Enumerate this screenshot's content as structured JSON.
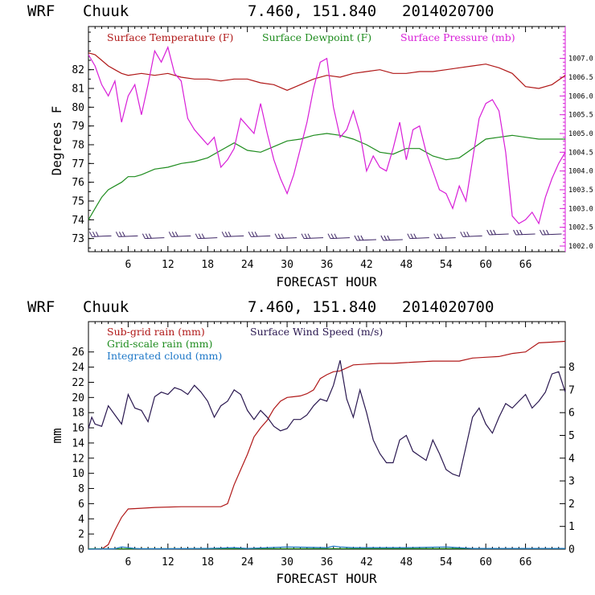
{
  "chart_data": [
    {
      "type": "line",
      "header": {
        "model": "WRF",
        "location": "Chuuk",
        "coords": "7.460, 151.840",
        "init": "2014020700"
      },
      "xlabel": "FORECAST HOUR",
      "ylabel": "Degrees F",
      "xlim": [
        0,
        72
      ],
      "ylim": [
        72.3,
        84.3
      ],
      "y2lim": [
        1001.85,
        1007.85
      ],
      "x_ticks": [
        "6",
        "12",
        "18",
        "24",
        "30",
        "36",
        "42",
        "48",
        "54",
        "60",
        "66"
      ],
      "y_ticks": [
        "73",
        "74",
        "75",
        "76",
        "77",
        "78",
        "79",
        "80",
        "81",
        "82"
      ],
      "y2_ticks": [
        "1002.0",
        "1002.5",
        "1003.0",
        "1003.5",
        "1004.0",
        "1004.5",
        "1005.0",
        "1005.5",
        "1006.0",
        "1006.5",
        "1007.0"
      ],
      "series": [
        {
          "name": "Surface Temperature (F)",
          "color": "#b01818",
          "axis": "left",
          "x": [
            0,
            1,
            2,
            3,
            4,
            5,
            6,
            8,
            10,
            12,
            14,
            16,
            18,
            20,
            22,
            24,
            26,
            28,
            30,
            32,
            34,
            36,
            38,
            40,
            42,
            44,
            46,
            48,
            50,
            52,
            54,
            56,
            58,
            60,
            62,
            64,
            66,
            68,
            70,
            72
          ],
          "y": [
            82.9,
            82.8,
            82.5,
            82.2,
            82.0,
            81.8,
            81.7,
            81.8,
            81.7,
            81.8,
            81.6,
            81.5,
            81.5,
            81.4,
            81.5,
            81.5,
            81.3,
            81.2,
            80.9,
            81.2,
            81.5,
            81.7,
            81.6,
            81.8,
            81.9,
            82.0,
            81.8,
            81.8,
            81.9,
            81.9,
            82.0,
            82.1,
            82.2,
            82.3,
            82.1,
            81.8,
            81.1,
            81.0,
            81.2,
            81.7
          ]
        },
        {
          "name": "Surface Dewpoint (F)",
          "color": "#1e8c1e",
          "axis": "left",
          "x": [
            0,
            1,
            2,
            3,
            4,
            5,
            6,
            7,
            8,
            10,
            12,
            14,
            16,
            18,
            20,
            22,
            24,
            26,
            28,
            30,
            32,
            34,
            36,
            38,
            40,
            42,
            44,
            46,
            48,
            50,
            52,
            54,
            56,
            58,
            60,
            62,
            64,
            66,
            68,
            70,
            72
          ],
          "y": [
            74.0,
            74.6,
            75.2,
            75.6,
            75.8,
            76.0,
            76.3,
            76.3,
            76.4,
            76.7,
            76.8,
            77.0,
            77.1,
            77.3,
            77.7,
            78.1,
            77.7,
            77.6,
            77.9,
            78.2,
            78.3,
            78.5,
            78.6,
            78.5,
            78.3,
            78.0,
            77.6,
            77.5,
            77.8,
            77.8,
            77.4,
            77.2,
            77.3,
            77.8,
            78.3,
            78.4,
            78.5,
            78.4,
            78.3,
            78.3,
            78.3
          ]
        },
        {
          "name": "Surface Pressure (mb)",
          "color": "#d81ed8",
          "axis": "right",
          "x": [
            0,
            1,
            2,
            3,
            4,
            5,
            6,
            7,
            8,
            9,
            10,
            11,
            12,
            13,
            14,
            15,
            16,
            17,
            18,
            19,
            20,
            21,
            22,
            23,
            24,
            25,
            26,
            27,
            28,
            29,
            30,
            31,
            32,
            33,
            34,
            35,
            36,
            37,
            38,
            39,
            40,
            41,
            42,
            43,
            44,
            45,
            46,
            47,
            48,
            49,
            50,
            51,
            52,
            53,
            54,
            55,
            56,
            57,
            58,
            59,
            60,
            61,
            62,
            63,
            64,
            65,
            66,
            67,
            68,
            69,
            70,
            71,
            72
          ],
          "y": [
            1007.1,
            1006.8,
            1006.3,
            1006.0,
            1006.4,
            1005.3,
            1006.0,
            1006.3,
            1005.5,
            1006.3,
            1007.2,
            1006.9,
            1007.3,
            1006.6,
            1006.4,
            1005.4,
            1005.1,
            1004.9,
            1004.7,
            1004.9,
            1004.1,
            1004.3,
            1004.6,
            1005.4,
            1005.2,
            1005.0,
            1005.8,
            1005.0,
            1004.3,
            1003.8,
            1003.4,
            1003.9,
            1004.6,
            1005.3,
            1006.2,
            1006.9,
            1007.0,
            1005.7,
            1004.9,
            1005.1,
            1005.6,
            1005.0,
            1004.0,
            1004.4,
            1004.1,
            1004.0,
            1004.6,
            1005.3,
            1004.3,
            1005.1,
            1005.2,
            1004.5,
            1004.0,
            1003.5,
            1003.4,
            1003.0,
            1003.6,
            1003.2,
            1004.3,
            1005.4,
            1005.8,
            1005.9,
            1005.6,
            1004.5,
            1002.8,
            1002.6,
            1002.7,
            1002.9,
            1002.6,
            1003.3,
            1003.8,
            1004.2,
            1004.5
          ]
        },
        {
          "name": "Wind barbs",
          "color": "#3c2464",
          "axis": "left",
          "x": [
            2,
            6,
            10,
            14,
            18,
            22,
            26,
            30,
            34,
            38,
            42,
            46,
            50,
            54,
            58,
            62,
            66,
            70
          ],
          "y": [
            73.1,
            73.1,
            73.0,
            73.1,
            73.0,
            73.1,
            73.1,
            73.0,
            73.0,
            73.0,
            72.9,
            72.9,
            73.0,
            73.0,
            73.1,
            73.2,
            73.2,
            73.2
          ]
        }
      ],
      "legend": [
        "Surface Temperature (F)",
        "Surface Dewpoint (F)",
        "Surface Pressure (mb)"
      ]
    },
    {
      "type": "line",
      "header": {
        "model": "WRF",
        "location": "Chuuk",
        "coords": "7.460, 151.840",
        "init": "2014020700"
      },
      "xlabel": "FORECAST HOUR",
      "ylabel": "mm",
      "xlim": [
        0,
        72
      ],
      "ylim": [
        0,
        30
      ],
      "y2lim": [
        0,
        10
      ],
      "x_ticks": [
        "6",
        "12",
        "18",
        "24",
        "30",
        "36",
        "42",
        "48",
        "54",
        "60",
        "66"
      ],
      "y_ticks": [
        "0",
        "2",
        "4",
        "6",
        "8",
        "10",
        "12",
        "14",
        "16",
        "18",
        "20",
        "22",
        "24",
        "26"
      ],
      "y2_ticks": [
        "0",
        "1",
        "2",
        "3",
        "4",
        "5",
        "6",
        "7",
        "8"
      ],
      "series": [
        {
          "name": "Sub-grid rain (mm)",
          "color": "#b01818",
          "axis": "left",
          "x": [
            0,
            2,
            3,
            4,
            5,
            6,
            8,
            10,
            14,
            18,
            20,
            21,
            22,
            23,
            24,
            25,
            26,
            27,
            28,
            29,
            30,
            31,
            32,
            33,
            34,
            35,
            36,
            37,
            38,
            40,
            42,
            44,
            46,
            48,
            52,
            56,
            58,
            60,
            62,
            64,
            66,
            68,
            70,
            72
          ],
          "y": [
            0,
            0,
            0.6,
            2.5,
            4.2,
            5.3,
            5.4,
            5.5,
            5.6,
            5.6,
            5.6,
            6.0,
            8.5,
            10.5,
            12.5,
            14.8,
            16.0,
            17.0,
            18.5,
            19.5,
            20.0,
            20.1,
            20.2,
            20.5,
            21.0,
            22.5,
            23.0,
            23.4,
            23.5,
            24.3,
            24.4,
            24.5,
            24.5,
            24.6,
            24.8,
            24.8,
            25.2,
            25.3,
            25.4,
            25.8,
            26.0,
            27.2,
            27.3,
            27.4
          ]
        },
        {
          "name": "Grid-scale rain (mm)",
          "color": "#1e8c1e",
          "axis": "left",
          "x": [
            0,
            72
          ],
          "y": [
            0.05,
            0.1
          ]
        },
        {
          "name": "Integrated cloud (mm)",
          "color": "#1e78c8",
          "axis": "left",
          "x": [
            0,
            4,
            5,
            6,
            7,
            8,
            12,
            18,
            22,
            24,
            30,
            36,
            37,
            38,
            40,
            44,
            48,
            54,
            58,
            64,
            70,
            72
          ],
          "y": [
            0,
            0.05,
            0.3,
            0.2,
            0.1,
            0.05,
            0.05,
            0.1,
            0.2,
            0.1,
            0.3,
            0.2,
            0.4,
            0.3,
            0.2,
            0.2,
            0.2,
            0.3,
            0.1,
            0.1,
            0.1,
            0.1
          ]
        },
        {
          "name": "Surface Wind Speed (m/s)",
          "color": "#2a1850",
          "axis": "right",
          "x": [
            0,
            0.5,
            1,
            2,
            3,
            4,
            5,
            6,
            7,
            8,
            9,
            10,
            11,
            12,
            13,
            14,
            15,
            16,
            17,
            18,
            19,
            20,
            21,
            22,
            23,
            24,
            25,
            26,
            27,
            28,
            29,
            30,
            31,
            32,
            33,
            34,
            35,
            36,
            37,
            38,
            39,
            40,
            41,
            42,
            43,
            44,
            45,
            46,
            47,
            48,
            49,
            50,
            51,
            52,
            53,
            54,
            55,
            56,
            57,
            58,
            59,
            60,
            61,
            62,
            63,
            64,
            65,
            66,
            67,
            68,
            69,
            70,
            71,
            72
          ],
          "y": [
            5.3,
            5.8,
            5.5,
            5.4,
            6.3,
            5.9,
            5.5,
            6.8,
            6.2,
            6.1,
            5.6,
            6.7,
            6.9,
            6.8,
            7.1,
            7.0,
            6.8,
            7.2,
            6.9,
            6.5,
            5.8,
            6.3,
            6.5,
            7.0,
            6.8,
            6.1,
            5.7,
            6.1,
            5.8,
            5.4,
            5.2,
            5.3,
            5.7,
            5.7,
            5.9,
            6.3,
            6.6,
            6.5,
            7.2,
            8.3,
            6.6,
            5.8,
            7.0,
            6.0,
            4.8,
            4.2,
            3.8,
            3.8,
            4.8,
            5.0,
            4.3,
            4.1,
            3.9,
            4.8,
            4.2,
            3.5,
            3.3,
            3.2,
            4.5,
            5.8,
            6.2,
            5.5,
            5.1,
            5.8,
            6.4,
            6.2,
            6.5,
            6.8,
            6.2,
            6.5,
            6.9,
            7.7,
            7.8,
            6.9
          ]
        }
      ],
      "legend": [
        "Sub-grid rain (mm)",
        "Grid-scale rain (mm)",
        "Integrated cloud (mm)",
        "Surface Wind Speed (m/s)"
      ]
    }
  ]
}
